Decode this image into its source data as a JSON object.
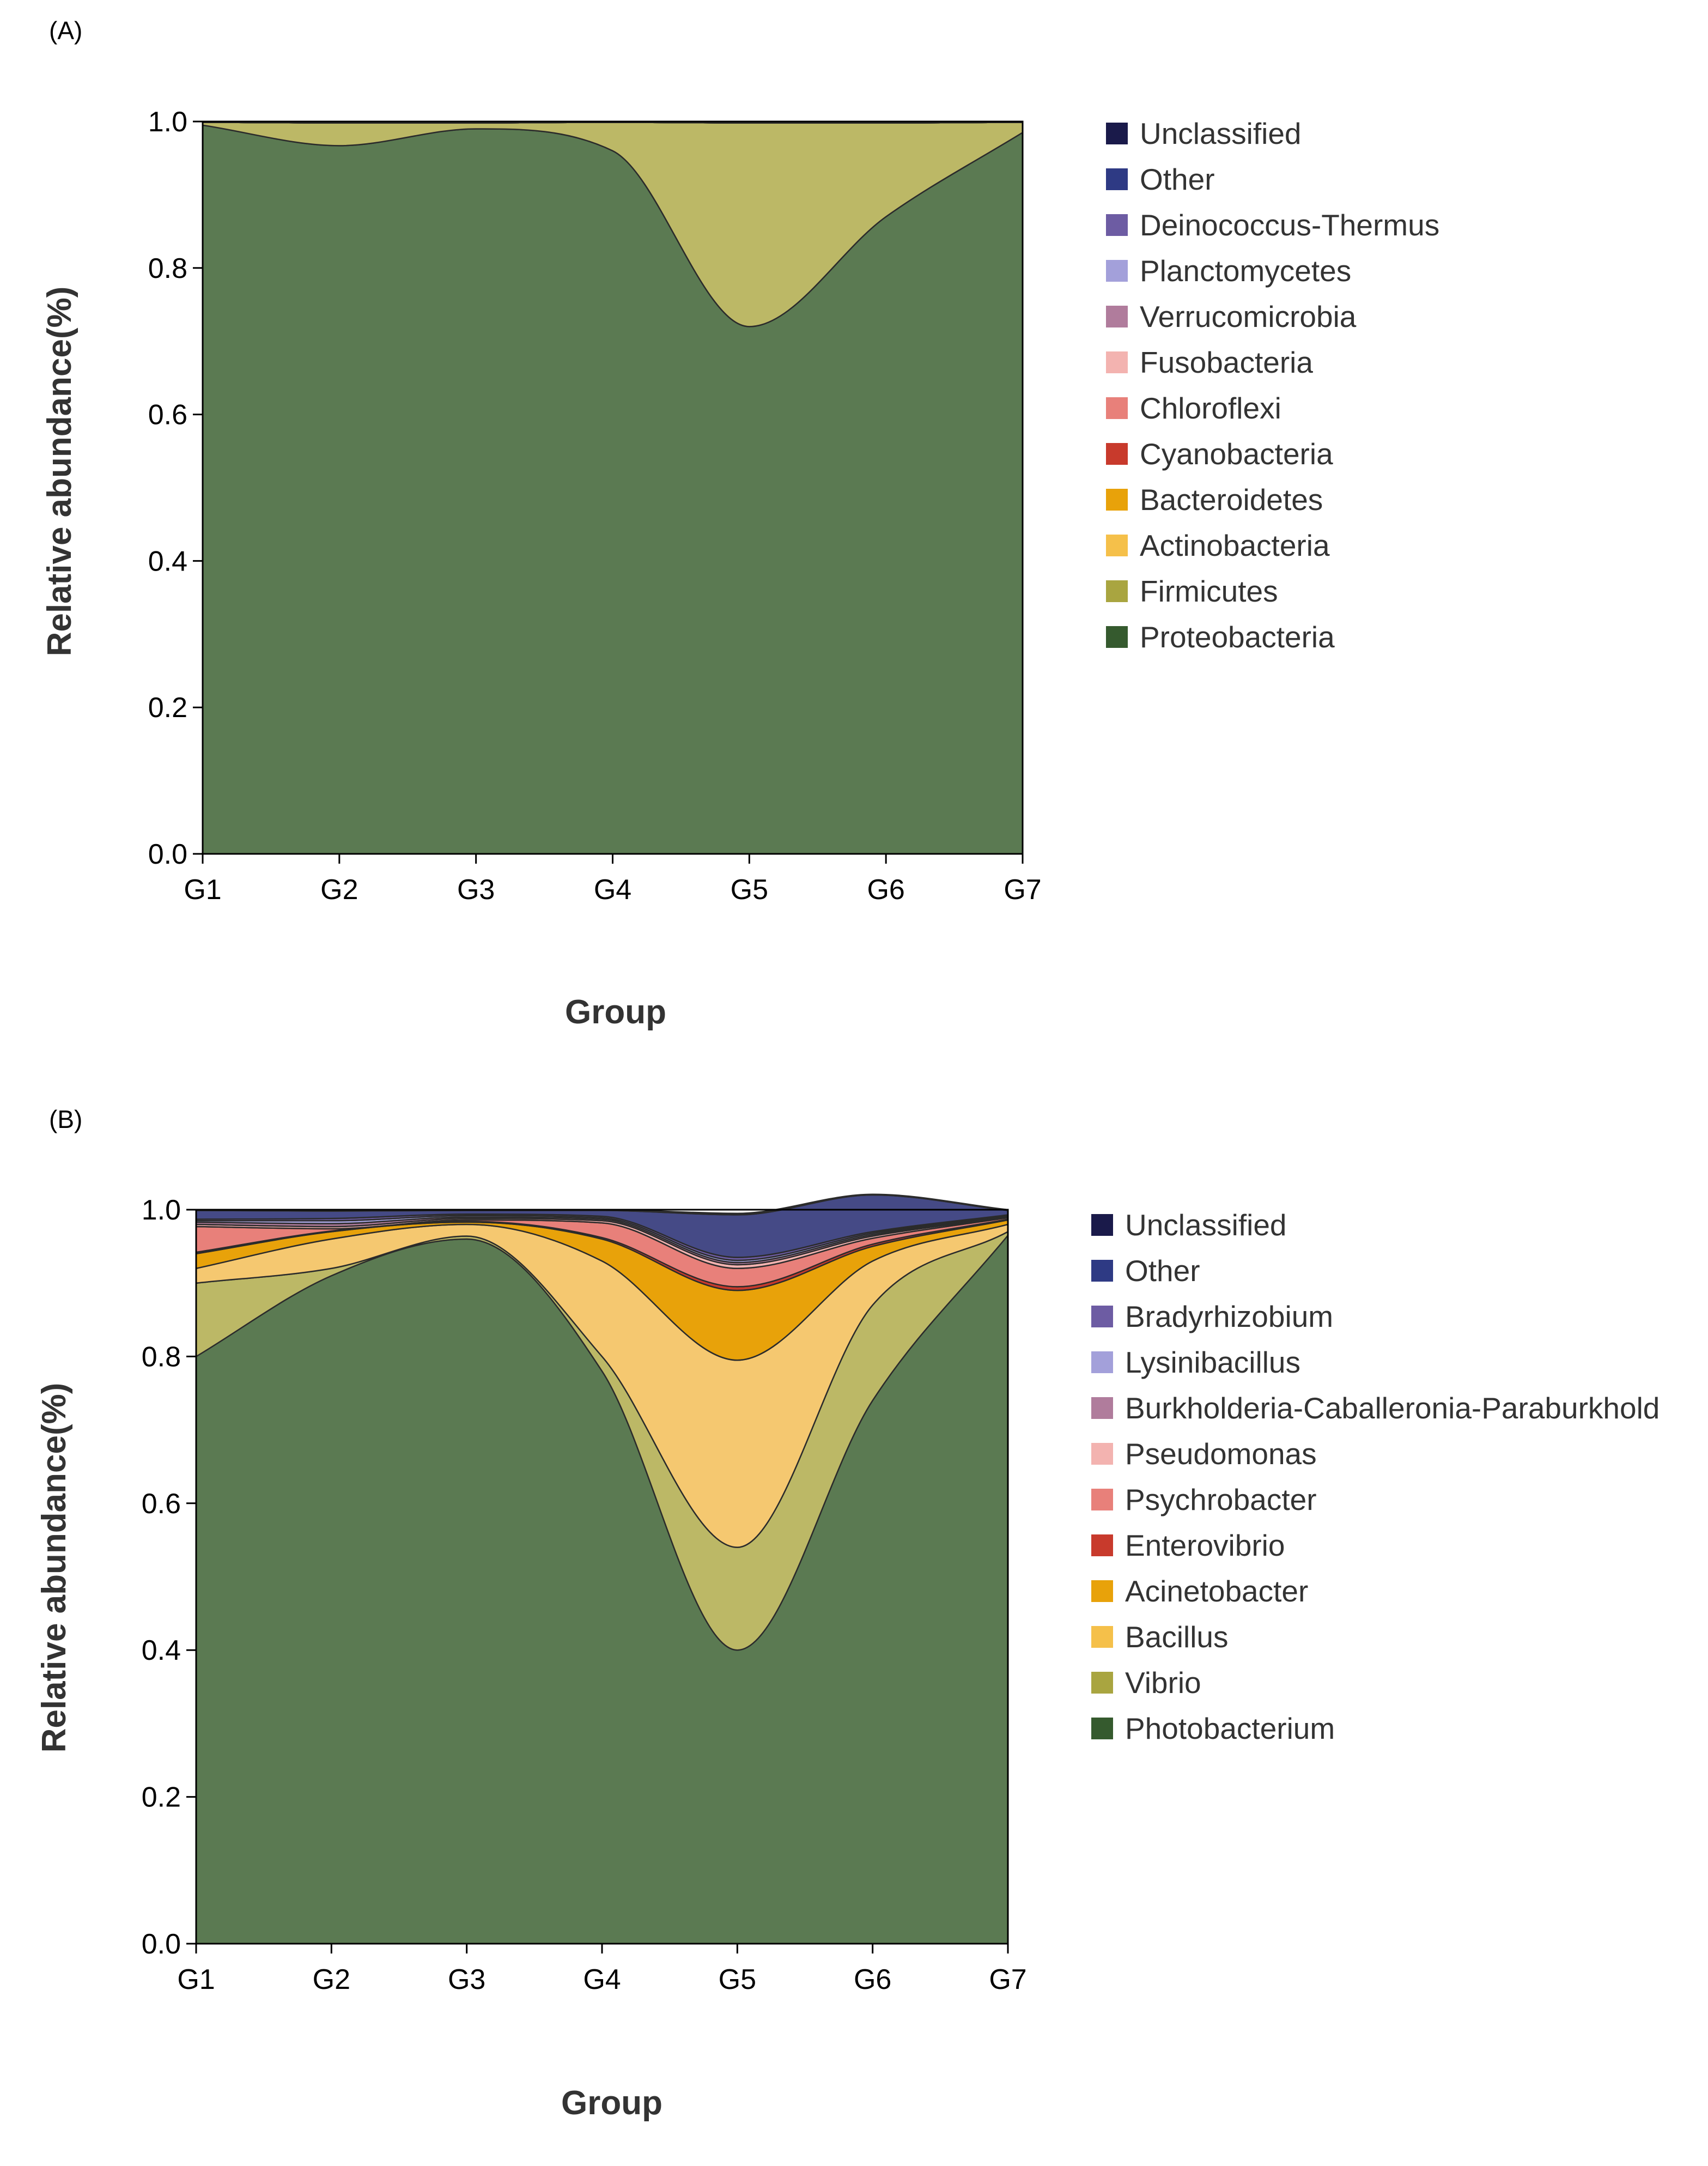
{
  "chart_data": [
    {
      "panel_label": "(A)",
      "type": "area",
      "stacked": true,
      "smooth": true,
      "xlabel": "Group",
      "ylabel": "Relative abundance(%)",
      "ylim": [
        0,
        1.0
      ],
      "yticks": [
        "0.0",
        "0.2",
        "0.4",
        "0.6",
        "0.8",
        "1.0"
      ],
      "categories": [
        "G1",
        "G2",
        "G3",
        "G4",
        "G5",
        "G6",
        "G7"
      ],
      "legend_position": "right",
      "series": [
        {
          "name": "Proteobacteria",
          "color": "#5b7a52",
          "legend_color": "#355a2e",
          "values": [
            0.995,
            0.967,
            0.99,
            0.96,
            0.72,
            0.87,
            0.985
          ]
        },
        {
          "name": "Firmicutes",
          "color": "#bcb866",
          "legend_color": "#a9a540",
          "values": [
            0.004,
            0.031,
            0.008,
            0.039,
            0.278,
            0.128,
            0.014
          ]
        },
        {
          "name": "Actinobacteria",
          "color": "#f5c870",
          "legend_color": "#f5c04a",
          "values": [
            0,
            0,
            0,
            0,
            0,
            0,
            0
          ]
        },
        {
          "name": "Bacteroidetes",
          "color": "#e8a20a",
          "legend_color": "#e8a20a",
          "values": [
            0,
            0,
            0,
            0,
            0,
            0,
            0
          ]
        },
        {
          "name": "Cyanobacteria",
          "color": "#c83a2c",
          "legend_color": "#c83a2c",
          "values": [
            0,
            0,
            0,
            0,
            0,
            0,
            0
          ]
        },
        {
          "name": "Chloroflexi",
          "color": "#e8807a",
          "legend_color": "#e8807a",
          "values": [
            0,
            0,
            0,
            0,
            0,
            0,
            0
          ]
        },
        {
          "name": "Fusobacteria",
          "color": "#f3b3b0",
          "legend_color": "#f3b3b0",
          "values": [
            0,
            0,
            0,
            0,
            0,
            0,
            0
          ]
        },
        {
          "name": "Verrucomicrobia",
          "color": "#b07c9c",
          "legend_color": "#b07c9c",
          "values": [
            0,
            0,
            0,
            0,
            0,
            0,
            0
          ]
        },
        {
          "name": "Planctomycetes",
          "color": "#a3a0da",
          "legend_color": "#a3a0da",
          "values": [
            0,
            0,
            0,
            0,
            0,
            0,
            0
          ]
        },
        {
          "name": "Deinococcus-Thermus",
          "color": "#6d5ca3",
          "legend_color": "#6d5ca3",
          "values": [
            0,
            0,
            0,
            0,
            0,
            0,
            0
          ]
        },
        {
          "name": "Other",
          "color": "#2e3a84",
          "legend_color": "#2e3a84",
          "values": [
            0.001,
            0.002,
            0.002,
            0.001,
            0.002,
            0.002,
            0.001
          ]
        },
        {
          "name": "Unclassified",
          "color": "#1a1a4a",
          "legend_color": "#1a1a4a",
          "values": [
            0,
            0,
            0,
            0,
            0,
            0,
            0
          ]
        }
      ]
    },
    {
      "panel_label": "(B)",
      "type": "area",
      "stacked": true,
      "smooth": true,
      "xlabel": "Group",
      "ylabel": "Relative abundance(%)",
      "ylim": [
        0,
        1.0
      ],
      "yticks": [
        "0.0",
        "0.2",
        "0.4",
        "0.6",
        "0.8",
        "1.0"
      ],
      "categories": [
        "G1",
        "G2",
        "G3",
        "G4",
        "G5",
        "G6",
        "G7"
      ],
      "legend_position": "right",
      "series": [
        {
          "name": "Photobacterium",
          "color": "#5b7a52",
          "legend_color": "#355a2e",
          "values": [
            0.8,
            0.91,
            0.96,
            0.78,
            0.4,
            0.74,
            0.965
          ]
        },
        {
          "name": "Vibrio",
          "color": "#bcb866",
          "legend_color": "#a9a540",
          "values": [
            0.1,
            0.01,
            0.004,
            0.02,
            0.14,
            0.13,
            0.005
          ]
        },
        {
          "name": "Bacillus",
          "color": "#f5c870",
          "legend_color": "#f5c04a",
          "values": [
            0.02,
            0.04,
            0.016,
            0.13,
            0.255,
            0.06,
            0.01
          ]
        },
        {
          "name": "Acinetobacter",
          "color": "#e8a20a",
          "legend_color": "#e8a20a",
          "values": [
            0.02,
            0.01,
            0.003,
            0.03,
            0.095,
            0.02,
            0.006
          ]
        },
        {
          "name": "Enterovibrio",
          "color": "#c83a2c",
          "legend_color": "#c83a2c",
          "values": [
            0.002,
            0.001,
            0.001,
            0.002,
            0.005,
            0.003,
            0.001
          ]
        },
        {
          "name": "Psychrobacter",
          "color": "#e8807a",
          "legend_color": "#e8807a",
          "values": [
            0.035,
            0.003,
            0.002,
            0.02,
            0.025,
            0.008,
            0.002
          ]
        },
        {
          "name": "Pseudomonas",
          "color": "#f3b3b0",
          "legend_color": "#f3b3b0",
          "values": [
            0.003,
            0.003,
            0.002,
            0.003,
            0.005,
            0.003,
            0.001
          ]
        },
        {
          "name": "Burkholderia-Caballeronia-Paraburkhold",
          "color": "#b07c9c",
          "legend_color": "#b07c9c",
          "values": [
            0.003,
            0.004,
            0.002,
            0.002,
            0.003,
            0.002,
            0.001
          ]
        },
        {
          "name": "Lysinibacillus",
          "color": "#a3a0da",
          "legend_color": "#a3a0da",
          "values": [
            0.002,
            0.004,
            0.002,
            0.002,
            0.003,
            0.002,
            0.001
          ]
        },
        {
          "name": "Bradyrhizobium",
          "color": "#6d5ca3",
          "legend_color": "#6d5ca3",
          "values": [
            0.002,
            0.003,
            0.002,
            0.002,
            0.004,
            0.002,
            0.001
          ]
        },
        {
          "name": "Other",
          "color": "#454a86",
          "legend_color": "#2e3a84",
          "values": [
            0.012,
            0.01,
            0.005,
            0.008,
            0.058,
            0.05,
            0.006
          ]
        },
        {
          "name": "Unclassified",
          "color": "#1a1a4a",
          "legend_color": "#1a1a4a",
          "values": [
            0.001,
            0.001,
            0.001,
            0.001,
            0.002,
            0.001,
            0.001
          ]
        }
      ]
    }
  ]
}
